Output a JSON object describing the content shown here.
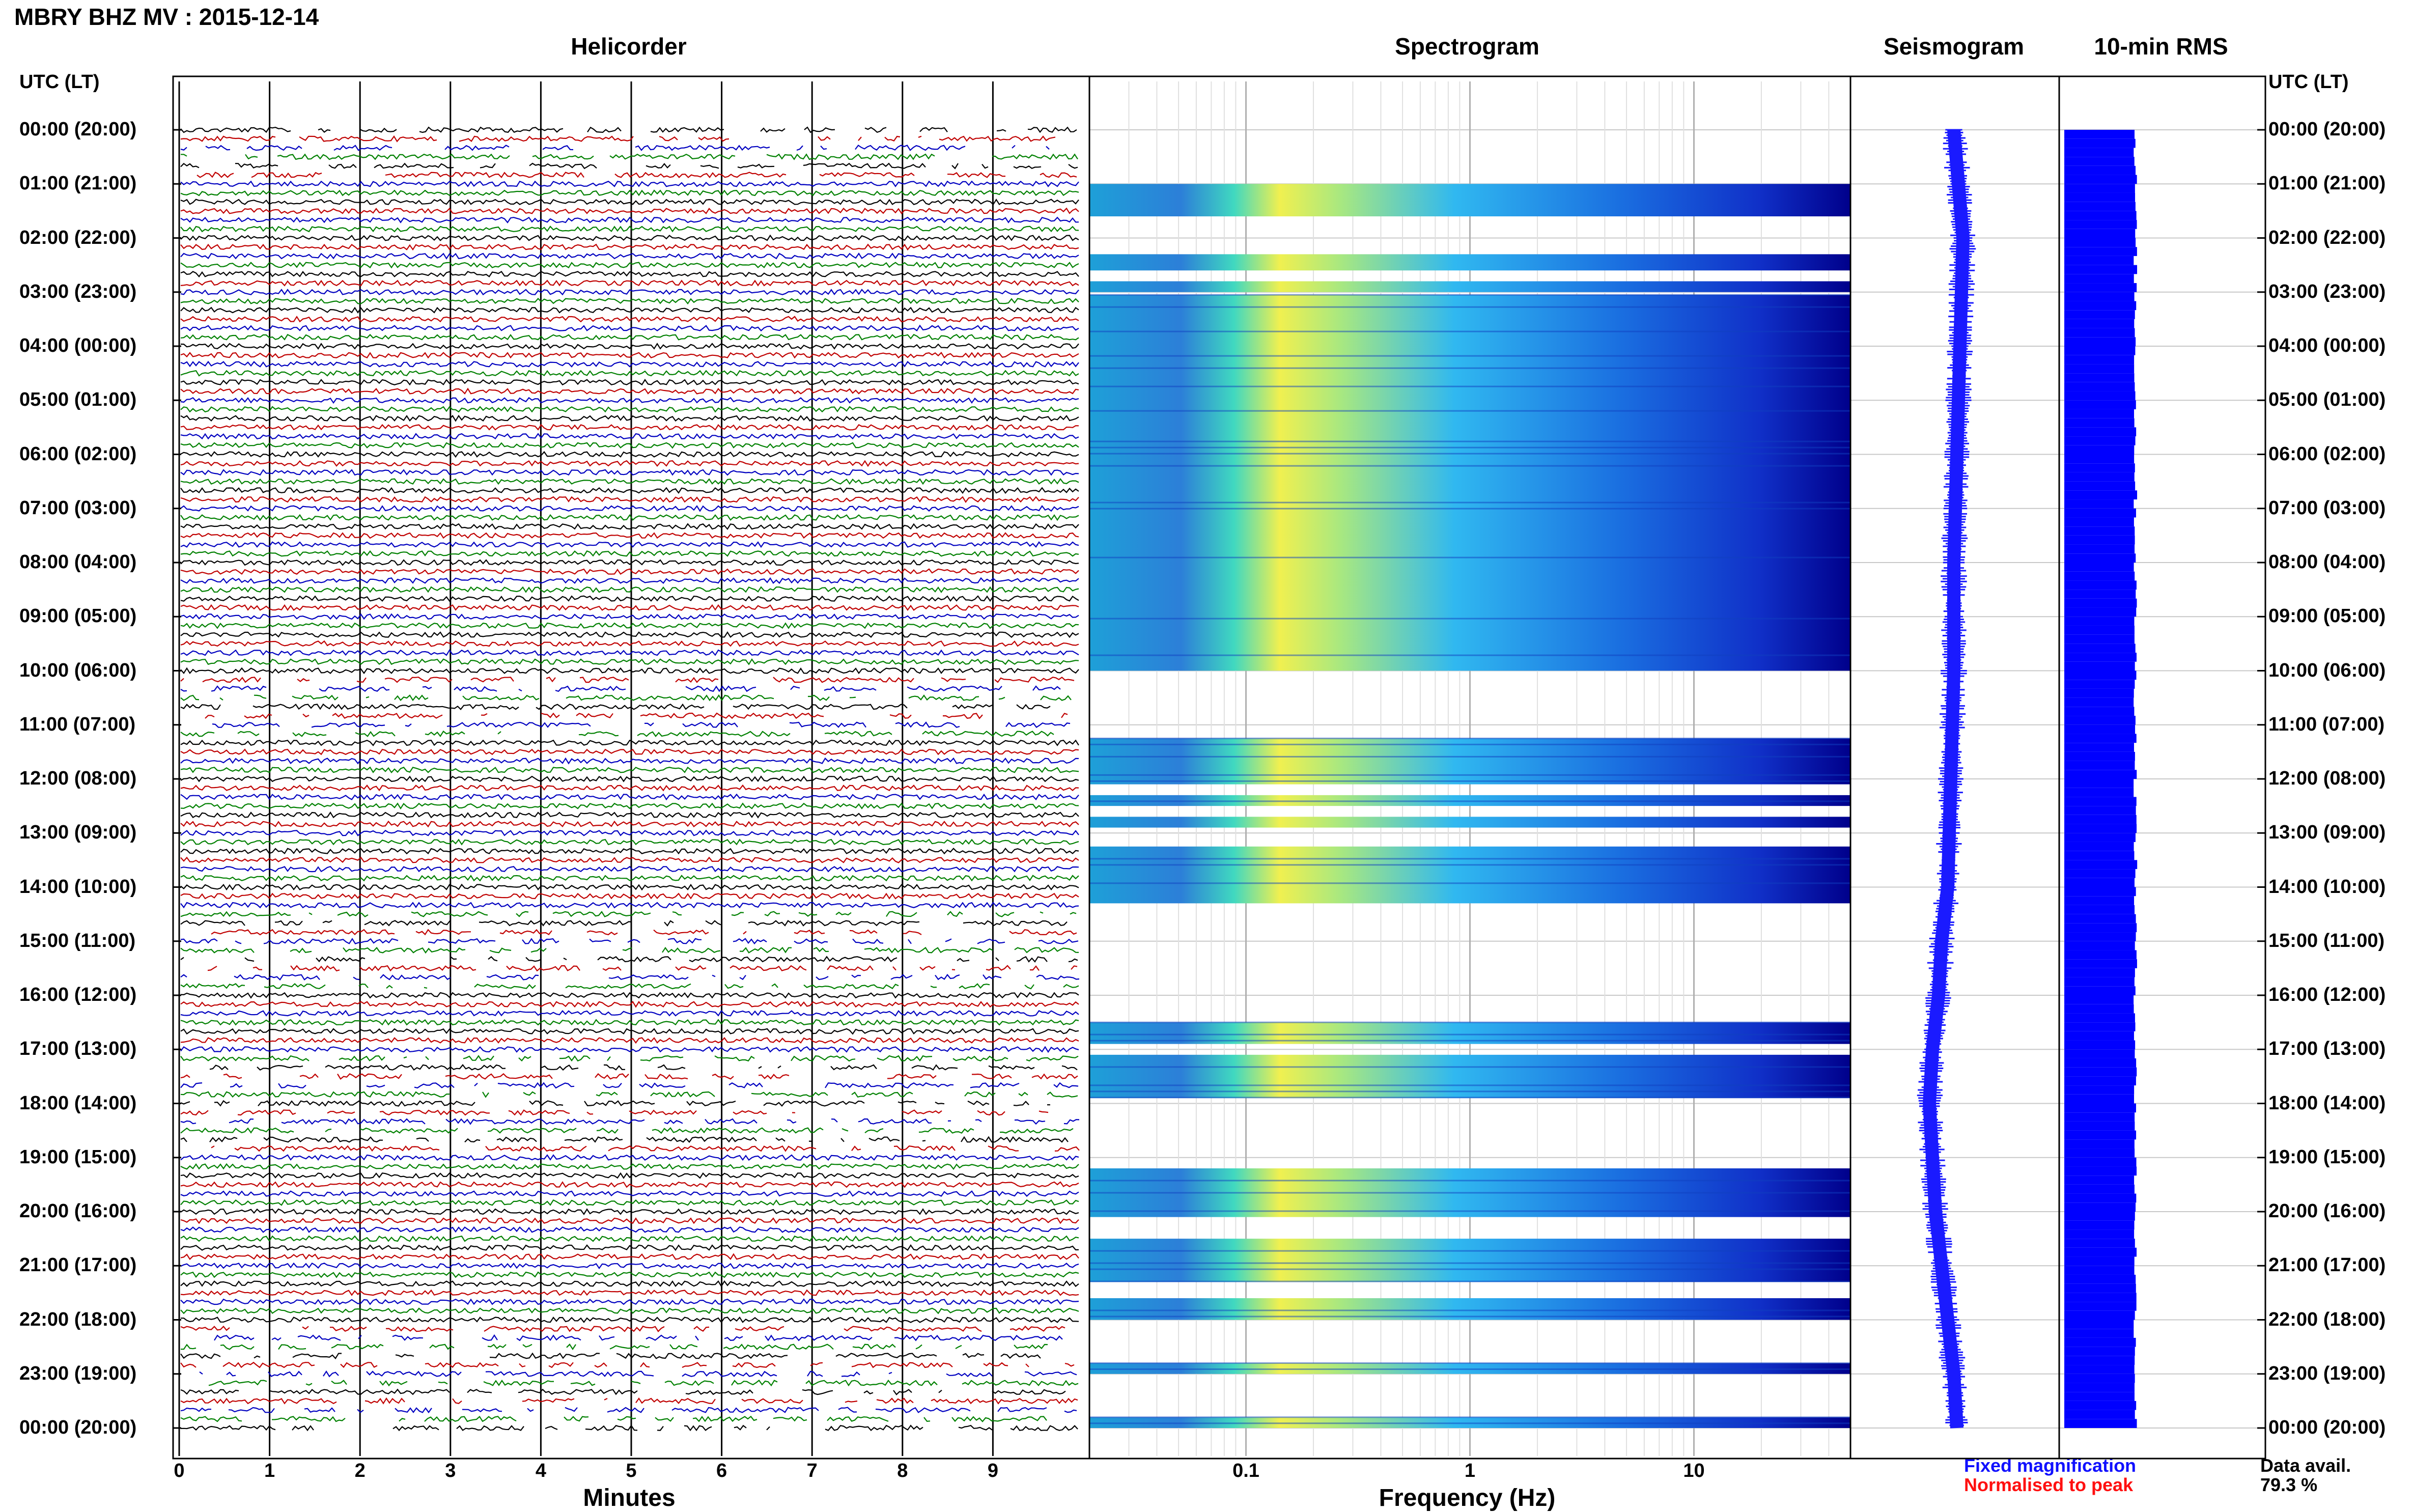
{
  "page": {
    "title": "MBRY BHZ MV : 2015-12-14"
  },
  "panels": {
    "helicorder_title": "Helicorder",
    "spectrogram_title": "Spectrogram",
    "seismogram_title": "Seismogram",
    "rms_title": "10-min RMS",
    "utc_header_left": "UTC (LT)",
    "utc_header_right": "UTC (LT)",
    "helicorder_xlabel": "Minutes",
    "spectrogram_xlabel": "Frequency (Hz)"
  },
  "legend": {
    "fixed": "Fixed magnification",
    "normalised": "Normalised to peak"
  },
  "availability": {
    "label": "Data avail.",
    "value": "79.3 %"
  },
  "colors": {
    "trace_colors": [
      "#000000",
      "#c00000",
      "#0000c0",
      "#008000"
    ],
    "seismogram": "#1a1aff",
    "rms": "#0000ff",
    "spectrogram_low": "#00008b",
    "spectrogram_mid": "#00bfff",
    "spectrogram_high": "#ffff40"
  },
  "chart_data": [
    {
      "type": "line",
      "name": "helicorder",
      "title": "Helicorder",
      "xlabel": "Minutes",
      "ylabel": "UTC (LT)",
      "x_ticks": [
        "0",
        "1",
        "2",
        "3",
        "4",
        "5",
        "6",
        "7",
        "8",
        "9"
      ],
      "xlim": [
        0,
        10
      ],
      "time_labels": [
        "00:00 (20:00)",
        "01:00 (21:00)",
        "02:00 (22:00)",
        "03:00 (23:00)",
        "04:00 (00:00)",
        "05:00 (01:00)",
        "06:00 (02:00)",
        "07:00 (03:00)",
        "08:00 (04:00)",
        "09:00 (05:00)",
        "10:00 (06:00)",
        "11:00 (07:00)",
        "12:00 (08:00)",
        "13:00 (09:00)",
        "14:00 (10:00)",
        "15:00 (11:00)",
        "16:00 (12:00)",
        "17:00 (13:00)",
        "18:00 (14:00)",
        "19:00 (15:00)",
        "20:00 (16:00)",
        "21:00 (17:00)",
        "22:00 (18:00)",
        "23:00 (19:00)",
        "00:00 (20:00)"
      ],
      "rows_per_hour": 6
    },
    {
      "type": "heatmap",
      "name": "spectrogram",
      "title": "Spectrogram",
      "xlabel": "Frequency (Hz)",
      "x_scale": "log",
      "x_ticks": [
        "0.1",
        "1",
        "10"
      ],
      "xlim": [
        0.02,
        50
      ],
      "rows_with_data": [
        [
          1.0,
          1.6
        ],
        [
          2.3,
          2.6
        ],
        [
          2.8,
          3.0
        ],
        [
          3.05,
          10.0
        ],
        [
          11.25,
          12.1
        ],
        [
          12.3,
          12.5
        ],
        [
          12.7,
          12.9
        ],
        [
          13.25,
          14.3
        ],
        [
          16.5,
          16.9
        ],
        [
          17.1,
          17.9
        ],
        [
          19.2,
          20.1
        ],
        [
          20.5,
          21.3
        ],
        [
          21.6,
          22.0
        ],
        [
          22.8,
          23.0
        ],
        [
          23.8,
          24.0
        ]
      ]
    },
    {
      "type": "line",
      "name": "seismogram",
      "title": "Seismogram",
      "hours": [
        0,
        2,
        4,
        6,
        8,
        10,
        12,
        14,
        15,
        16,
        17,
        18,
        19,
        20,
        21,
        22,
        23,
        24
      ],
      "offset": [
        0.0,
        0.15,
        0.1,
        0.05,
        0.0,
        0.0,
        -0.05,
        -0.1,
        -0.2,
        -0.25,
        -0.35,
        -0.4,
        -0.35,
        -0.3,
        -0.2,
        -0.1,
        0.0,
        0.05
      ]
    },
    {
      "type": "bar",
      "name": "rms",
      "title": "10-min RMS",
      "bins_per_hour": 6,
      "relative_level": 0.93
    }
  ]
}
